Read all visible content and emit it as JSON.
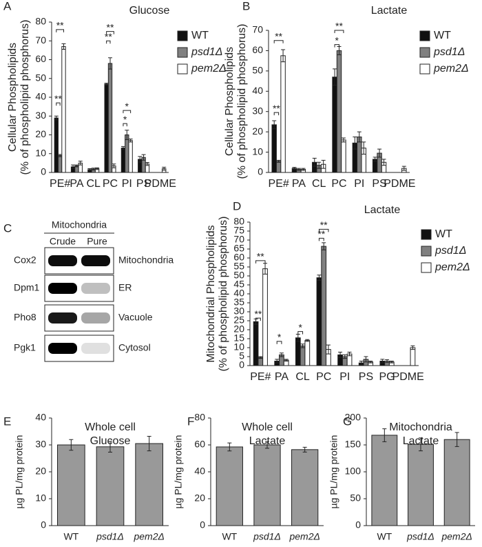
{
  "chart_data": [
    {
      "type": "bar",
      "panel": "A",
      "title": "Glucose",
      "ylabel": [
        "Cellular Phospholipids",
        "(% of phospholipid phosphorus)"
      ],
      "categories": [
        "PE#",
        "PA",
        "CL",
        "PC",
        "PI",
        "PS",
        "PDME"
      ],
      "series": [
        {
          "name": "WT",
          "color": "#111111",
          "values": [
            29,
            3,
            1.5,
            47,
            13,
            7,
            null
          ],
          "errors": [
            1,
            1,
            0.5,
            0.5,
            0.8,
            1.5,
            null
          ]
        },
        {
          "name": "psd1Δ",
          "color": "#808080",
          "values": [
            9,
            3.5,
            1.8,
            58,
            20,
            8,
            null
          ],
          "errors": [
            0.6,
            0.5,
            0.5,
            3,
            2.5,
            1.5,
            null
          ]
        },
        {
          "name": "pem2Δ",
          "color": "#ffffff",
          "values": [
            67,
            5,
            2,
            3.5,
            17,
            4.5,
            2
          ],
          "errors": [
            1.5,
            1,
            0.5,
            1,
            0.8,
            0.8,
            0.8
          ]
        }
      ],
      "ylim": [
        0,
        80
      ],
      "yticks": [
        0,
        10,
        20,
        30,
        40,
        50,
        60,
        70,
        80
      ],
      "annotations": [
        "**",
        "**",
        "**",
        "**",
        "*",
        "*"
      ]
    },
    {
      "type": "bar",
      "panel": "B",
      "title": "Lactate",
      "ylabel": [
        "Cellular Phospholipids",
        "(% of phospholipid phosphorus)"
      ],
      "categories": [
        "PE#",
        "PA",
        "CL",
        "PC",
        "PI",
        "PS",
        "PDME"
      ],
      "series": [
        {
          "name": "WT",
          "color": "#111111",
          "values": [
            23.5,
            2,
            5,
            47,
            14.5,
            6.5,
            null
          ],
          "errors": [
            2,
            0.5,
            2,
            4,
            3,
            1,
            null
          ]
        },
        {
          "name": "psd1Δ",
          "color": "#808080",
          "values": [
            5.5,
            1.5,
            3.5,
            60,
            17.5,
            9.5,
            null
          ],
          "errors": [
            0.5,
            0.5,
            1.5,
            2,
            2.5,
            2,
            null
          ]
        },
        {
          "name": "pem2Δ",
          "color": "#ffffff",
          "values": [
            57.5,
            1.5,
            4,
            16,
            12,
            5,
            2
          ],
          "errors": [
            3,
            0.5,
            2,
            1,
            3,
            1.5,
            1
          ]
        }
      ],
      "ylim": [
        0,
        70
      ],
      "yticks": [
        0,
        10,
        20,
        30,
        40,
        50,
        60,
        70
      ],
      "annotations": [
        "**",
        "**",
        "**",
        "*"
      ]
    },
    {
      "type": "bar",
      "panel": "D",
      "title": "Lactate",
      "ylabel": [
        "Mitochondrial Phospholipids",
        "(% of phospholipid phosphorus)"
      ],
      "categories": [
        "PE#",
        "PA",
        "CL",
        "PC",
        "PI",
        "PS",
        "PG",
        "PDME"
      ],
      "series": [
        {
          "name": "WT",
          "color": "#111111",
          "values": [
            24.5,
            2.5,
            15.5,
            49,
            6,
            1.5,
            2.5,
            null
          ],
          "errors": [
            1.5,
            1,
            2,
            1.5,
            1.5,
            1,
            1,
            null
          ]
        },
        {
          "name": "psd1Δ",
          "color": "#808080",
          "values": [
            4.5,
            6,
            11,
            66.5,
            5,
            3.5,
            2.5,
            null
          ],
          "errors": [
            0.5,
            1,
            1,
            2,
            1,
            1.5,
            0.8,
            null
          ]
        },
        {
          "name": "pem2Δ",
          "color": "#ffffff",
          "values": [
            54,
            3,
            14,
            9,
            6.5,
            2,
            2,
            10
          ],
          "errors": [
            3,
            0.5,
            0.5,
            2.5,
            1,
            0.5,
            0.5,
            1
          ]
        }
      ],
      "ylim": [
        0,
        80
      ],
      "yticks": [
        0,
        5,
        10,
        15,
        20,
        25,
        30,
        35,
        40,
        45,
        50,
        55,
        60,
        65,
        70,
        75,
        80
      ],
      "annotations": [
        "**",
        "**",
        "*",
        "*",
        "**",
        "**"
      ]
    },
    {
      "type": "bar",
      "panel": "E",
      "title": "Whole cell",
      "subtitle": "Glucose",
      "ylabel": "µg PL/mg protein",
      "color": "#999999",
      "categories": [
        "WT",
        "psd1Δ",
        "pem2Δ"
      ],
      "values": [
        30,
        29.3,
        30.5
      ],
      "errors": [
        2,
        2,
        2.7
      ],
      "ylim": [
        0,
        40
      ],
      "yticks": [
        0,
        10,
        20,
        30,
        40
      ]
    },
    {
      "type": "bar",
      "panel": "F",
      "title": "Whole cell",
      "subtitle": "Lactate",
      "ylabel": "µg PL/mg protein",
      "color": "#999999",
      "categories": [
        "WT",
        "psd1Δ",
        "pem2Δ"
      ],
      "values": [
        58.5,
        60,
        56.5
      ],
      "errors": [
        3,
        2.5,
        1.8
      ],
      "ylim": [
        0,
        80
      ],
      "yticks": [
        0,
        20,
        40,
        60,
        80
      ]
    },
    {
      "type": "bar",
      "panel": "G",
      "title": "Mitochondria",
      "subtitle": "Lactate",
      "ylabel": "µg PL/mg protein",
      "color": "#999999",
      "categories": [
        "WT",
        "psd1Δ",
        "pem2Δ"
      ],
      "values": [
        168,
        151,
        160
      ],
      "errors": [
        12,
        12,
        13
      ],
      "ylim": [
        0,
        200
      ],
      "yticks": [
        0,
        50,
        100,
        150,
        200
      ]
    }
  ],
  "blot": {
    "panel": "C",
    "header": "Mitochondria",
    "columns": [
      "Crude",
      "Pure"
    ],
    "rows": [
      {
        "protein": "Cox2",
        "compartment": "Mitochondria"
      },
      {
        "protein": "Dpm1",
        "compartment": "ER"
      },
      {
        "protein": "Pho8",
        "compartment": "Vacuole"
      },
      {
        "protein": "Pgk1",
        "compartment": "Cytosol"
      }
    ]
  }
}
